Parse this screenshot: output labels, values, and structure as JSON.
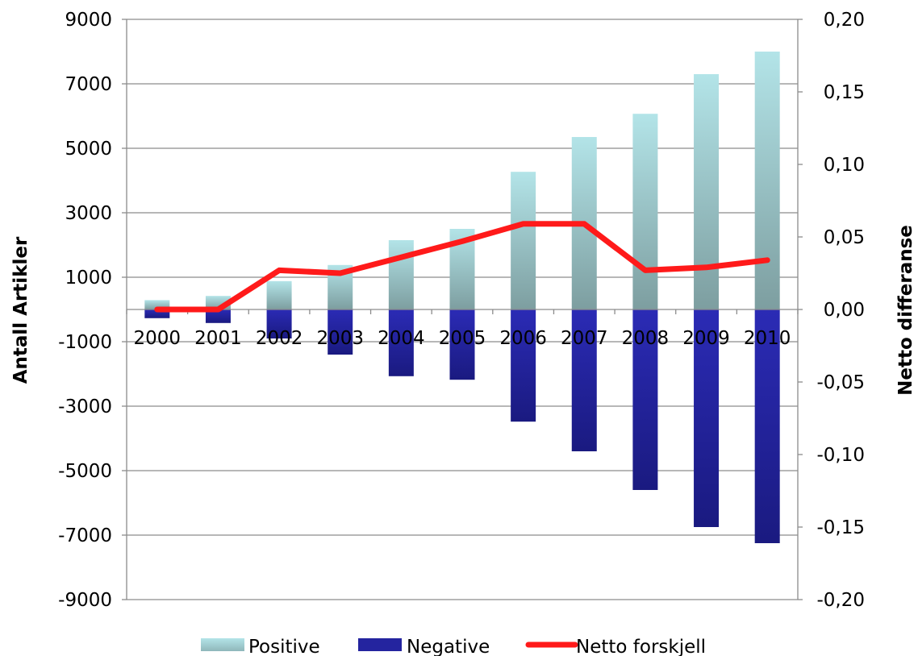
{
  "chart_data": {
    "type": "bar",
    "categories": [
      "2000",
      "2001",
      "2002",
      "2003",
      "2004",
      "2005",
      "2006",
      "2007",
      "2008",
      "2009",
      "2010"
    ],
    "series": [
      {
        "name": "Positive",
        "type": "bar",
        "axis": "left",
        "values": [
          290,
          420,
          880,
          1380,
          2150,
          2500,
          4270,
          5350,
          6070,
          7300,
          8000
        ],
        "color": "#a9dde0"
      },
      {
        "name": "Negative",
        "type": "bar",
        "axis": "left",
        "values": [
          -270,
          -420,
          -900,
          -1400,
          -2070,
          -2180,
          -3480,
          -4400,
          -5600,
          -6750,
          -7250
        ],
        "color": "#24249f"
      },
      {
        "name": "Netto forskjell",
        "type": "line",
        "axis": "right",
        "values": [
          0.0,
          0.0,
          0.027,
          0.025,
          0.036,
          0.047,
          0.059,
          0.059,
          0.027,
          0.029,
          0.034
        ],
        "color": "#ff1a1a"
      }
    ],
    "ylabel": "Antall Artikler",
    "y2label": "Netto differanse",
    "ylim": [
      -9000,
      9000
    ],
    "y2lim": [
      -0.2,
      0.2
    ],
    "yticks": [
      "9000",
      "7000",
      "5000",
      "3000",
      "1000",
      "-1000",
      "-3000",
      "-5000",
      "-7000",
      "-9000"
    ],
    "y2ticks": [
      "0,20",
      "0,15",
      "0,10",
      "0,05",
      "0,00",
      "-0,05",
      "-0,10",
      "-0,15",
      "-0,20"
    ],
    "grid": true,
    "legend_position": "bottom"
  }
}
